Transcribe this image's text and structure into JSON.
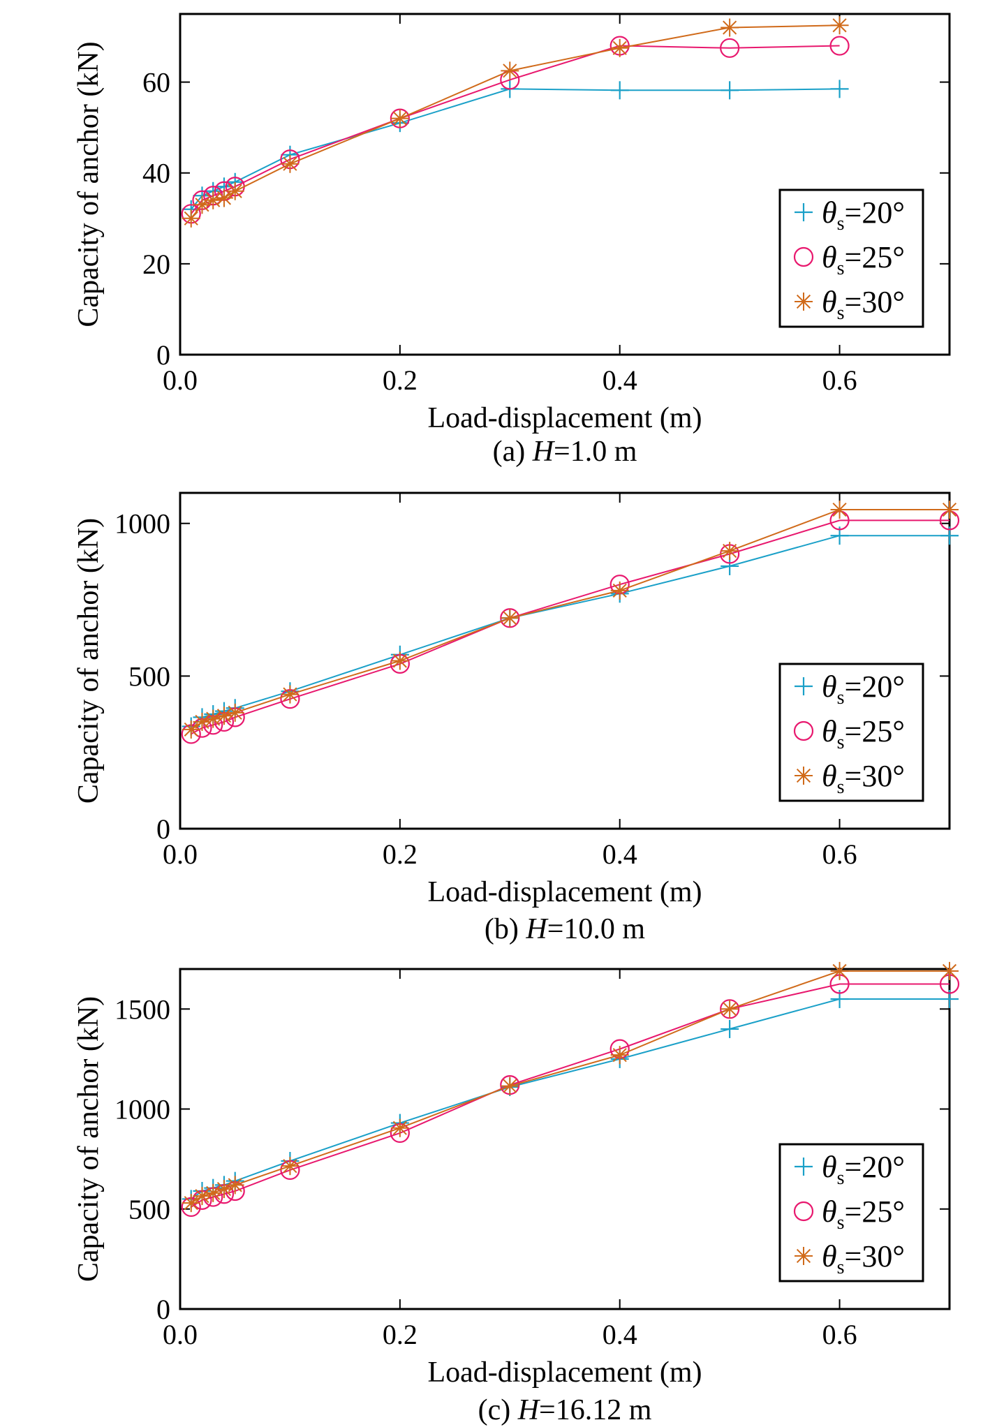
{
  "chart_data": [
    {
      "type": "line",
      "caption": {
        "prefix": "(a) ",
        "var": "H",
        "suffix": "=1.0 m"
      },
      "xlabel": "Load-displacement (m)",
      "ylabel": "Capacity of anchor (kN)",
      "xlim": [
        0.0,
        0.7
      ],
      "ylim": [
        0,
        75
      ],
      "xticks": [
        0.0,
        0.2,
        0.4,
        0.6
      ],
      "xtick_labels": [
        "0.0",
        "0.2",
        "0.4",
        "0.6"
      ],
      "yticks": [
        0,
        20,
        40,
        60
      ],
      "ytick_labels": [
        "0",
        "20",
        "40",
        "60"
      ],
      "grid": false,
      "legend_position": "lower-right",
      "series": [
        {
          "name": "θs=20°",
          "marker": "plus",
          "color": "#1aa0c8",
          "x": [
            0.01,
            0.02,
            0.03,
            0.04,
            0.05,
            0.1,
            0.2,
            0.3,
            0.4,
            0.5,
            0.6
          ],
          "y": [
            32,
            35,
            36,
            37,
            38,
            44,
            51,
            58.5,
            58.2,
            58.2,
            58.5
          ]
        },
        {
          "name": "θs=25°",
          "marker": "circle",
          "color": "#e8186e",
          "x": [
            0.01,
            0.02,
            0.03,
            0.04,
            0.05,
            0.1,
            0.2,
            0.3,
            0.4,
            0.5,
            0.6
          ],
          "y": [
            31,
            34,
            35,
            36,
            37,
            43,
            52,
            60.5,
            68,
            67.5,
            68
          ]
        },
        {
          "name": "θs=30°",
          "marker": "asterisk",
          "color": "#d06a1a",
          "x": [
            0.01,
            0.02,
            0.03,
            0.04,
            0.05,
            0.1,
            0.2,
            0.3,
            0.4,
            0.5,
            0.6
          ],
          "y": [
            30,
            33,
            34,
            34.5,
            36,
            42,
            52,
            62.5,
            67.5,
            72,
            72.5
          ]
        }
      ]
    },
    {
      "type": "line",
      "caption": {
        "prefix": "(b) ",
        "var": "H",
        "suffix": "=10.0 m"
      },
      "xlabel": "Load-displacement (m)",
      "ylabel": "Capacity of anchor (kN)",
      "xlim": [
        0.0,
        0.7
      ],
      "ylim": [
        0,
        1100
      ],
      "xticks": [
        0.0,
        0.2,
        0.4,
        0.6
      ],
      "xtick_labels": [
        "0.0",
        "0.2",
        "0.4",
        "0.6"
      ],
      "yticks": [
        0,
        500,
        1000
      ],
      "ytick_labels": [
        "0",
        "500",
        "1000"
      ],
      "grid": false,
      "legend_position": "lower-right",
      "series": [
        {
          "name": "θs=20°",
          "marker": "plus",
          "color": "#1aa0c8",
          "x": [
            0.01,
            0.02,
            0.03,
            0.04,
            0.05,
            0.1,
            0.2,
            0.3,
            0.4,
            0.5,
            0.6,
            0.7
          ],
          "y": [
            335,
            365,
            375,
            385,
            395,
            450,
            570,
            690,
            770,
            860,
            960,
            960
          ]
        },
        {
          "name": "θs=25°",
          "marker": "circle",
          "color": "#e8186e",
          "x": [
            0.01,
            0.02,
            0.03,
            0.04,
            0.05,
            0.1,
            0.2,
            0.3,
            0.4,
            0.5,
            0.6,
            0.7
          ],
          "y": [
            310,
            330,
            340,
            350,
            365,
            425,
            540,
            690,
            800,
            900,
            1010,
            1010
          ]
        },
        {
          "name": "θs=30°",
          "marker": "asterisk",
          "color": "#d06a1a",
          "x": [
            0.01,
            0.02,
            0.03,
            0.04,
            0.05,
            0.1,
            0.2,
            0.3,
            0.4,
            0.5,
            0.6,
            0.7
          ],
          "y": [
            325,
            350,
            360,
            370,
            380,
            440,
            550,
            690,
            780,
            910,
            1045,
            1045
          ]
        }
      ]
    },
    {
      "type": "line",
      "caption": {
        "prefix": "(c) ",
        "var": "H",
        "suffix": "=16.12 m"
      },
      "xlabel": "Load-displacement (m)",
      "ylabel": "Capacity of anchor (kN)",
      "xlim": [
        0.0,
        0.7
      ],
      "ylim": [
        0,
        1700
      ],
      "xticks": [
        0.0,
        0.2,
        0.4,
        0.6
      ],
      "xtick_labels": [
        "0.0",
        "0.2",
        "0.4",
        "0.6"
      ],
      "yticks": [
        0,
        500,
        1000,
        1500
      ],
      "ytick_labels": [
        "0",
        "500",
        "1000",
        "1500"
      ],
      "grid": false,
      "legend_position": "lower-right",
      "series": [
        {
          "name": "θs=20°",
          "marker": "plus",
          "color": "#1aa0c8",
          "x": [
            0.01,
            0.02,
            0.03,
            0.04,
            0.05,
            0.1,
            0.2,
            0.3,
            0.4,
            0.5,
            0.6,
            0.7
          ],
          "y": [
            550,
            590,
            605,
            620,
            640,
            740,
            930,
            1110,
            1250,
            1400,
            1550,
            1550
          ]
        },
        {
          "name": "θs=25°",
          "marker": "circle",
          "color": "#e8186e",
          "x": [
            0.01,
            0.02,
            0.03,
            0.04,
            0.05,
            0.1,
            0.2,
            0.3,
            0.4,
            0.5,
            0.6,
            0.7
          ],
          "y": [
            510,
            545,
            560,
            575,
            590,
            695,
            880,
            1120,
            1300,
            1500,
            1625,
            1625
          ]
        },
        {
          "name": "θs=30°",
          "marker": "asterisk",
          "color": "#d06a1a",
          "x": [
            0.01,
            0.02,
            0.03,
            0.04,
            0.05,
            0.1,
            0.2,
            0.3,
            0.4,
            0.5,
            0.6,
            0.7
          ],
          "y": [
            530,
            565,
            580,
            600,
            620,
            715,
            905,
            1115,
            1270,
            1500,
            1690,
            1690
          ]
        }
      ]
    }
  ]
}
